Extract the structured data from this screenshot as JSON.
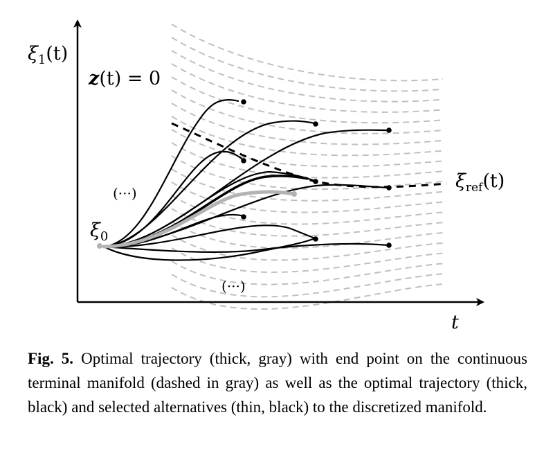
{
  "figure": {
    "labels": {
      "y_axis_symbol": "ξ",
      "y_axis_sub": "1",
      "y_axis_arg": "(t)",
      "x_axis": "t",
      "z_eq_bold": "z",
      "z_eq_rest": "(t) = 0",
      "start_symbol": "ξ",
      "start_sub": "0",
      "ref_symbol": "ξ",
      "ref_sub": "ref",
      "ref_arg": "(t)",
      "ellipsis_upper": "(···)",
      "ellipsis_lower": "(···)"
    },
    "colors": {
      "axes": "#000000",
      "manifold": "#bfbfbf",
      "optimal_continuous": "#b3b3b3",
      "trajectories": "#000000"
    }
  },
  "caption": {
    "label": "Fig. 5.",
    "text": "Optimal trajectory (thick, gray) with end point on the continuous terminal manifold (dashed in gray) as well as the optimal trajectory (thick, black) and selected alternatives (thin, black) to the discretized manifold."
  }
}
